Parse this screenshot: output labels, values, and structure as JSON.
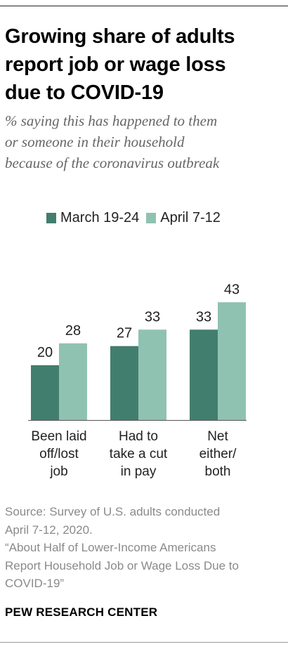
{
  "title": [
    "Growing share of adults",
    "report job or wage loss",
    "due to COVID-19"
  ],
  "subtitle": [
    "% saying this has happened to them",
    "or someone in their household",
    "because of the coronavirus outbreak"
  ],
  "colors": {
    "march": "#427e6e",
    "april": "#8fc2b1",
    "axis": "#555555",
    "source": "#8a8a8a"
  },
  "chart_data": {
    "type": "bar",
    "categories": [
      [
        "Been laid",
        "off/lost",
        "job"
      ],
      [
        "Had to",
        "take a cut",
        "in pay"
      ],
      [
        "Net",
        "either/",
        "both"
      ]
    ],
    "series": [
      {
        "name": "March 19-24",
        "values": [
          20,
          27,
          33
        ]
      },
      {
        "name": "April 7-12",
        "values": [
          28,
          33,
          43
        ]
      }
    ],
    "ylim": [
      0,
      50
    ],
    "grid": false,
    "legend": "top"
  },
  "source": [
    "Source: Survey of U.S. adults conducted",
    "April 7-12, 2020.",
    "“About Half of Lower-Income Americans",
    "Report Household Job or Wage Loss Due to",
    "COVID-19”"
  ],
  "brand": "PEW RESEARCH CENTER"
}
